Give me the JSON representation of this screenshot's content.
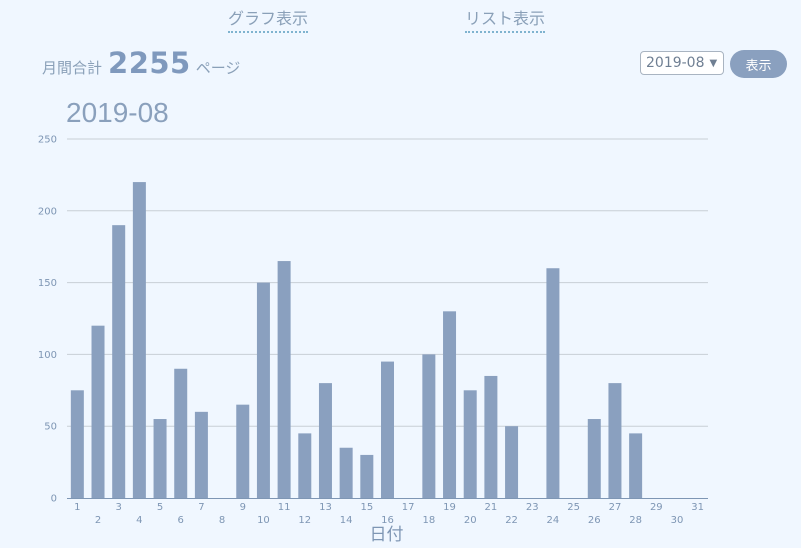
{
  "nav": {
    "graph_label": "グラフ表示",
    "list_label": "リスト表示"
  },
  "summary": {
    "label": "月間合計",
    "total": "2255",
    "unit": "ページ"
  },
  "controls": {
    "selected_month": "2019-08",
    "show_button_label": "表示"
  },
  "colors": {
    "bar": "#8aa0bf",
    "grid": "#c8cfd6",
    "axis": "#7e96b4",
    "background": "#f0f7ff"
  },
  "chart_data": {
    "type": "bar",
    "title": "2019-08",
    "xlabel": "日付",
    "ylabel": "",
    "ylim": [
      0,
      250
    ],
    "yticks": [
      0,
      50,
      100,
      150,
      200,
      250
    ],
    "grid": true,
    "categories": [
      "1",
      "2",
      "3",
      "4",
      "5",
      "6",
      "7",
      "8",
      "9",
      "10",
      "11",
      "12",
      "13",
      "14",
      "15",
      "16",
      "17",
      "18",
      "19",
      "20",
      "21",
      "22",
      "23",
      "24",
      "25",
      "26",
      "27",
      "28",
      "29",
      "30",
      "31"
    ],
    "values": [
      75,
      120,
      190,
      220,
      55,
      90,
      60,
      0,
      65,
      150,
      165,
      45,
      80,
      35,
      30,
      95,
      0,
      100,
      130,
      75,
      85,
      50,
      0,
      160,
      0,
      55,
      80,
      45,
      0,
      0,
      0
    ]
  }
}
